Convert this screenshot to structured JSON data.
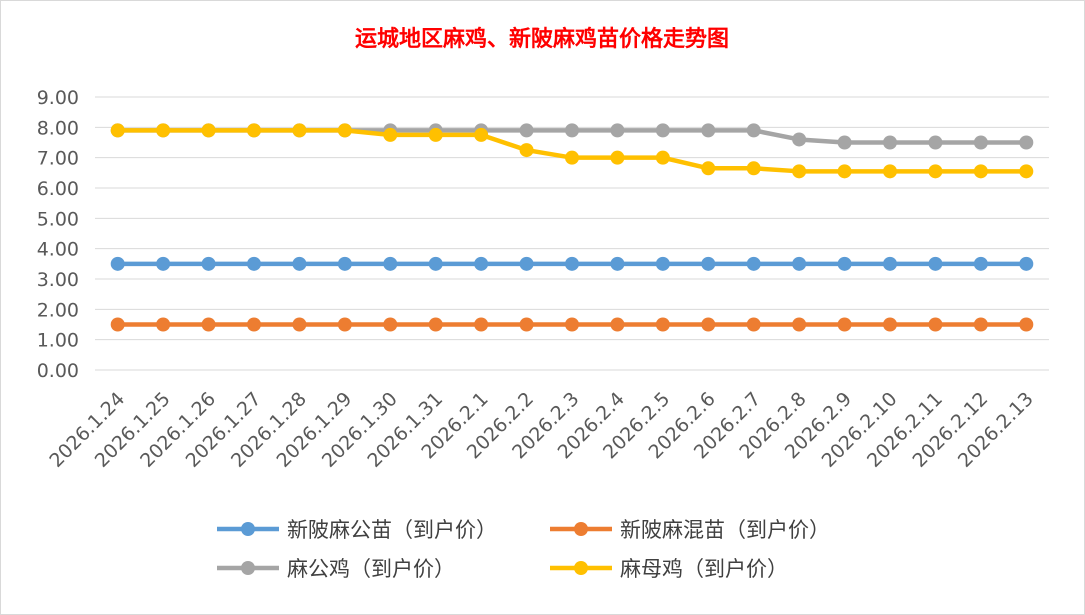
{
  "chart_data": {
    "type": "line",
    "title": "运城地区麻鸡、新陂麻鸡苗价格走势图",
    "title_color": "#ff0000",
    "xlabel": "",
    "ylabel": "",
    "ylim": [
      0,
      9
    ],
    "y_ticks": [
      "0.00",
      "1.00",
      "2.00",
      "3.00",
      "4.00",
      "5.00",
      "6.00",
      "7.00",
      "8.00",
      "9.00"
    ],
    "grid": true,
    "legend_position": "bottom",
    "categories": [
      "2026.1.24",
      "2026.1.25",
      "2026.1.26",
      "2026.1.27",
      "2026.1.28",
      "2026.1.29",
      "2026.1.30",
      "2026.1.31",
      "2026.2.1",
      "2026.2.2",
      "2026.2.3",
      "2026.2.4",
      "2026.2.5",
      "2026.2.6",
      "2026.2.7",
      "2026.2.8",
      "2026.2.9",
      "2026.2.10",
      "2026.2.11",
      "2026.2.12",
      "2026.2.13"
    ],
    "series": [
      {
        "name": "新陂麻公苗（到户价）",
        "color": "#5b9bd5",
        "values": [
          3.5,
          3.5,
          3.5,
          3.5,
          3.5,
          3.5,
          3.5,
          3.5,
          3.5,
          3.5,
          3.5,
          3.5,
          3.5,
          3.5,
          3.5,
          3.5,
          3.5,
          3.5,
          3.5,
          3.5,
          3.5
        ]
      },
      {
        "name": "新陂麻混苗（到户价）",
        "color": "#ed7d31",
        "values": [
          1.5,
          1.5,
          1.5,
          1.5,
          1.5,
          1.5,
          1.5,
          1.5,
          1.5,
          1.5,
          1.5,
          1.5,
          1.5,
          1.5,
          1.5,
          1.5,
          1.5,
          1.5,
          1.5,
          1.5,
          1.5
        ]
      },
      {
        "name": "麻公鸡（到户价）",
        "color": "#a5a5a5",
        "values": [
          7.9,
          7.9,
          7.9,
          7.9,
          7.9,
          7.9,
          7.9,
          7.9,
          7.9,
          7.9,
          7.9,
          7.9,
          7.9,
          7.9,
          7.9,
          7.6,
          7.5,
          7.5,
          7.5,
          7.5,
          7.5
        ]
      },
      {
        "name": "麻母鸡（到户价）",
        "color": "#ffc000",
        "values": [
          7.9,
          7.9,
          7.9,
          7.9,
          7.9,
          7.9,
          7.75,
          7.75,
          7.75,
          7.25,
          7.0,
          7.0,
          7.0,
          6.65,
          6.65,
          6.55,
          6.55,
          6.55,
          6.55,
          6.55,
          6.55
        ]
      }
    ]
  }
}
